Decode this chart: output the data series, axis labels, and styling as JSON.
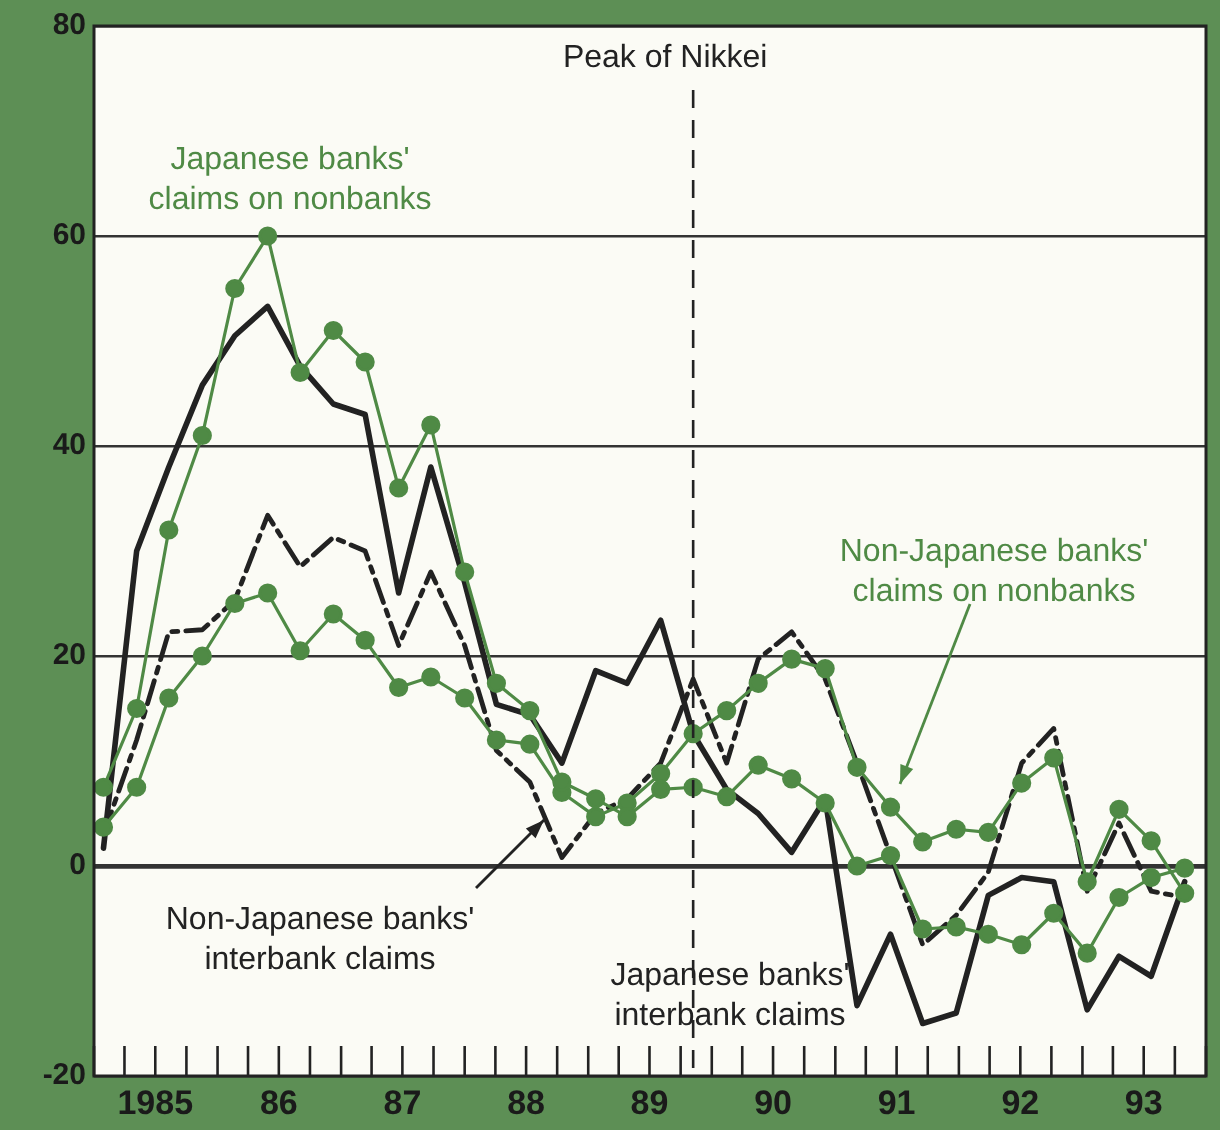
{
  "chart_data": {
    "type": "line",
    "x": [
      "1985-01-29",
      "1985-05-07",
      "1985-08-10",
      "1985-11-17",
      "1986-02-21",
      "1986-05-29",
      "1986-09-02",
      "1986-12-09",
      "1987-03-13",
      "1987-06-20",
      "1987-09-23",
      "1988-01-01",
      "1988-04-04",
      "1988-07-12",
      "1988-10-15",
      "1989-01-23",
      "1989-04-26",
      "1989-08-03",
      "1989-11-07",
      "1990-02-14",
      "1990-05-18",
      "1990-08-25",
      "1990-12-02",
      "1991-03-06",
      "1991-06-13",
      "1991-09-16",
      "1991-12-24",
      "1992-03-28",
      "1992-07-05",
      "1992-10-08",
      "1993-01-15",
      "1993-04-19",
      "1993-07-23",
      "1993-10-30"
    ],
    "series": [
      {
        "name": "Japanese banks'\nclaims on nonbanks",
        "color": "#4f8a45",
        "marker": "circle",
        "values": [
          7.5,
          15,
          32,
          41,
          55,
          60,
          47,
          51,
          48,
          36,
          42,
          28,
          17.4,
          14.8,
          8,
          6.4,
          4.7,
          7.3,
          7.5,
          6.6,
          9.6,
          8.3,
          6,
          0,
          1,
          -6,
          -5.8,
          -6.5,
          -7.5,
          -4.5,
          -8.3,
          -3,
          -1.1,
          -0.2
        ]
      },
      {
        "name": "Non-Japanese banks'\nclaims on nonbanks",
        "color": "#4f8a45",
        "marker": "circle",
        "values": [
          3.7,
          7.5,
          16,
          20,
          25,
          26,
          20.5,
          24,
          21.5,
          17,
          18,
          16,
          12,
          11.6,
          7,
          4.7,
          6,
          8.8,
          12.6,
          14.8,
          17.4,
          19.7,
          18.8,
          9.4,
          5.6,
          2.3,
          3.5,
          3.2,
          7.9,
          10.3,
          -1.5,
          5.4,
          2.4,
          -2.6
        ]
      },
      {
        "name": "Japanese banks'\ninterbank claims",
        "color": "#222222",
        "marker": "none",
        "values": [
          1.7,
          30,
          38,
          45.8,
          50.5,
          53.3,
          47.6,
          44,
          43,
          26,
          38,
          27,
          15.4,
          14.4,
          9.8,
          18.6,
          17.4,
          23.4,
          12.6,
          7.3,
          5,
          1.3,
          6.4,
          -13.3,
          -6.5,
          -15,
          -14,
          -2.8,
          -1.1,
          -1.5,
          -13.7,
          -8.6,
          -10.5,
          -1.5
        ]
      },
      {
        "name": "Non-Japanese banks'\ninterbank claims",
        "color": "#222222",
        "marker": "none",
        "line_style": "dashed",
        "values": [
          3,
          12,
          22.3,
          22.5,
          25.3,
          33.4,
          28.5,
          31.3,
          30,
          21,
          28,
          21,
          11,
          8,
          0.8,
          5,
          6.4,
          9.8,
          17.8,
          9.8,
          19.7,
          22.3,
          17.8,
          9.8,
          1,
          -7.5,
          -4.7,
          -0.6,
          9.8,
          13.1,
          -2.4,
          4.1,
          -2.4,
          -3
        ]
      }
    ],
    "xlim": [
      "1985-01-01",
      "1994-01-01"
    ],
    "xticks": [
      {
        "value": "1985-01-01",
        "label": null
      },
      {
        "value": "1985-04-01",
        "label": null
      },
      {
        "value": "1985-07-01",
        "label": "1985"
      },
      {
        "value": "1985-10-01",
        "label": null
      },
      {
        "value": "1986-01-01",
        "label": null
      },
      {
        "value": "1986-04-01",
        "label": null
      },
      {
        "value": "1986-07-01",
        "label": "86"
      },
      {
        "value": "1986-10-01",
        "label": null
      },
      {
        "value": "1987-01-01",
        "label": null
      },
      {
        "value": "1987-04-01",
        "label": null
      },
      {
        "value": "1987-07-01",
        "label": "87"
      },
      {
        "value": "1987-10-01",
        "label": null
      },
      {
        "value": "1988-01-01",
        "label": null
      },
      {
        "value": "1988-04-01",
        "label": null
      },
      {
        "value": "1988-07-01",
        "label": "88"
      },
      {
        "value": "1988-10-01",
        "label": null
      },
      {
        "value": "1989-01-01",
        "label": null
      },
      {
        "value": "1989-04-01",
        "label": null
      },
      {
        "value": "1989-07-01",
        "label": "89"
      },
      {
        "value": "1989-10-01",
        "label": null
      },
      {
        "value": "1990-01-01",
        "label": null
      },
      {
        "value": "1990-04-01",
        "label": null
      },
      {
        "value": "1990-07-01",
        "label": "90"
      },
      {
        "value": "1990-10-01",
        "label": null
      },
      {
        "value": "1991-01-01",
        "label": null
      },
      {
        "value": "1991-04-01",
        "label": null
      },
      {
        "value": "1991-07-01",
        "label": "91"
      },
      {
        "value": "1991-10-01",
        "label": null
      },
      {
        "value": "1992-01-01",
        "label": null
      },
      {
        "value": "1992-04-01",
        "label": null
      },
      {
        "value": "1992-07-01",
        "label": "92"
      },
      {
        "value": "1992-10-01",
        "label": null
      },
      {
        "value": "1993-01-01",
        "label": null
      },
      {
        "value": "1993-04-01",
        "label": null
      },
      {
        "value": "1993-07-01",
        "label": "93"
      },
      {
        "value": "1993-10-01",
        "label": null
      },
      {
        "value": "1994-01-01",
        "label": null
      }
    ],
    "ylim": [
      -20,
      80
    ],
    "yticks": [
      -20,
      0,
      20,
      40,
      60,
      80
    ],
    "grid": "y",
    "legend": false,
    "ref_lines": [
      {
        "axis": "x",
        "value": "1989-11-07",
        "label": "Peak of Nikkei",
        "line_style": "dashed",
        "color": "#222222"
      }
    ]
  }
}
